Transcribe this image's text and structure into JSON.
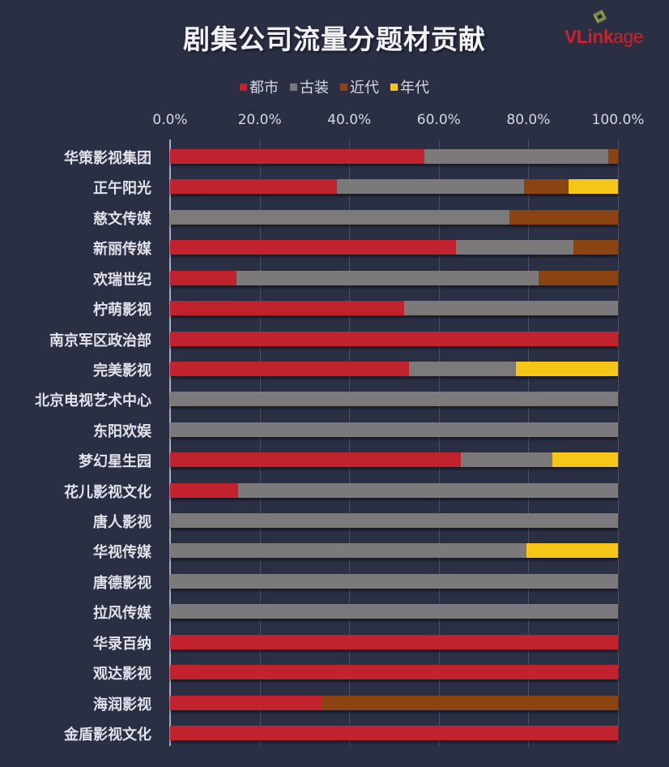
{
  "title": "剧集公司流量分题材贡献",
  "logo": {
    "text_bold": "VLink",
    "text_light": "age"
  },
  "legend": [
    {
      "label": "都市",
      "color": "#c0222e"
    },
    {
      "label": "古装",
      "color": "#7b7979"
    },
    {
      "label": "近代",
      "color": "#8c4312"
    },
    {
      "label": "年代",
      "color": "#f5c518"
    }
  ],
  "axis": {
    "ticks": [
      "0.0%",
      "20.0%",
      "40.0%",
      "60.0%",
      "80.0%",
      "100.0%"
    ]
  },
  "chart_data": {
    "type": "bar",
    "orientation": "horizontal",
    "stacked": "percent",
    "title": "剧集公司流量分题材贡献",
    "xlabel": "",
    "ylabel": "",
    "xlim": [
      0,
      100
    ],
    "x_tick_labels": [
      "0.0%",
      "20.0%",
      "40.0%",
      "60.0%",
      "80.0%",
      "100.0%"
    ],
    "grid": true,
    "legend_position": "top",
    "categories": [
      "华策影视集团",
      "正午阳光",
      "慈文传媒",
      "新丽传媒",
      "欢瑞世纪",
      "柠萌影视",
      "南京军区政治部",
      "完美影视",
      "北京电视艺术中心",
      "东阳欢娱",
      "梦幻星生园",
      "花儿影视文化",
      "唐人影视",
      "华视传媒",
      "唐德影视",
      "拉风传媒",
      "华录百纳",
      "观达影视",
      "海润影视",
      "金盾影视文化"
    ],
    "series": [
      {
        "name": "都市",
        "color": "#c0222e",
        "values": [
          56.7,
          37.2,
          0,
          63.9,
          14.9,
          52.2,
          100,
          53.3,
          0,
          0,
          64.9,
          15.1,
          0,
          0,
          0,
          0,
          100,
          100,
          33.9,
          100
        ]
      },
      {
        "name": "古装",
        "color": "#7b7979",
        "values": [
          41.1,
          41.9,
          75.7,
          26.2,
          67.3,
          47.8,
          0,
          23.9,
          100,
          100,
          20.4,
          84.9,
          100,
          79.6,
          100,
          100,
          0,
          0,
          0,
          0
        ]
      },
      {
        "name": "近代",
        "color": "#8c4312",
        "values": [
          2.2,
          9.9,
          24.3,
          9.9,
          17.8,
          0,
          0,
          0,
          0,
          0,
          0,
          0,
          0,
          0,
          0,
          0,
          0,
          0,
          66.1,
          0
        ]
      },
      {
        "name": "年代",
        "color": "#f5c518",
        "values": [
          0,
          11.0,
          0,
          0,
          0,
          0,
          0,
          22.8,
          0,
          0,
          14.7,
          0,
          0,
          20.4,
          0,
          0,
          0,
          0,
          0,
          0
        ]
      }
    ]
  }
}
